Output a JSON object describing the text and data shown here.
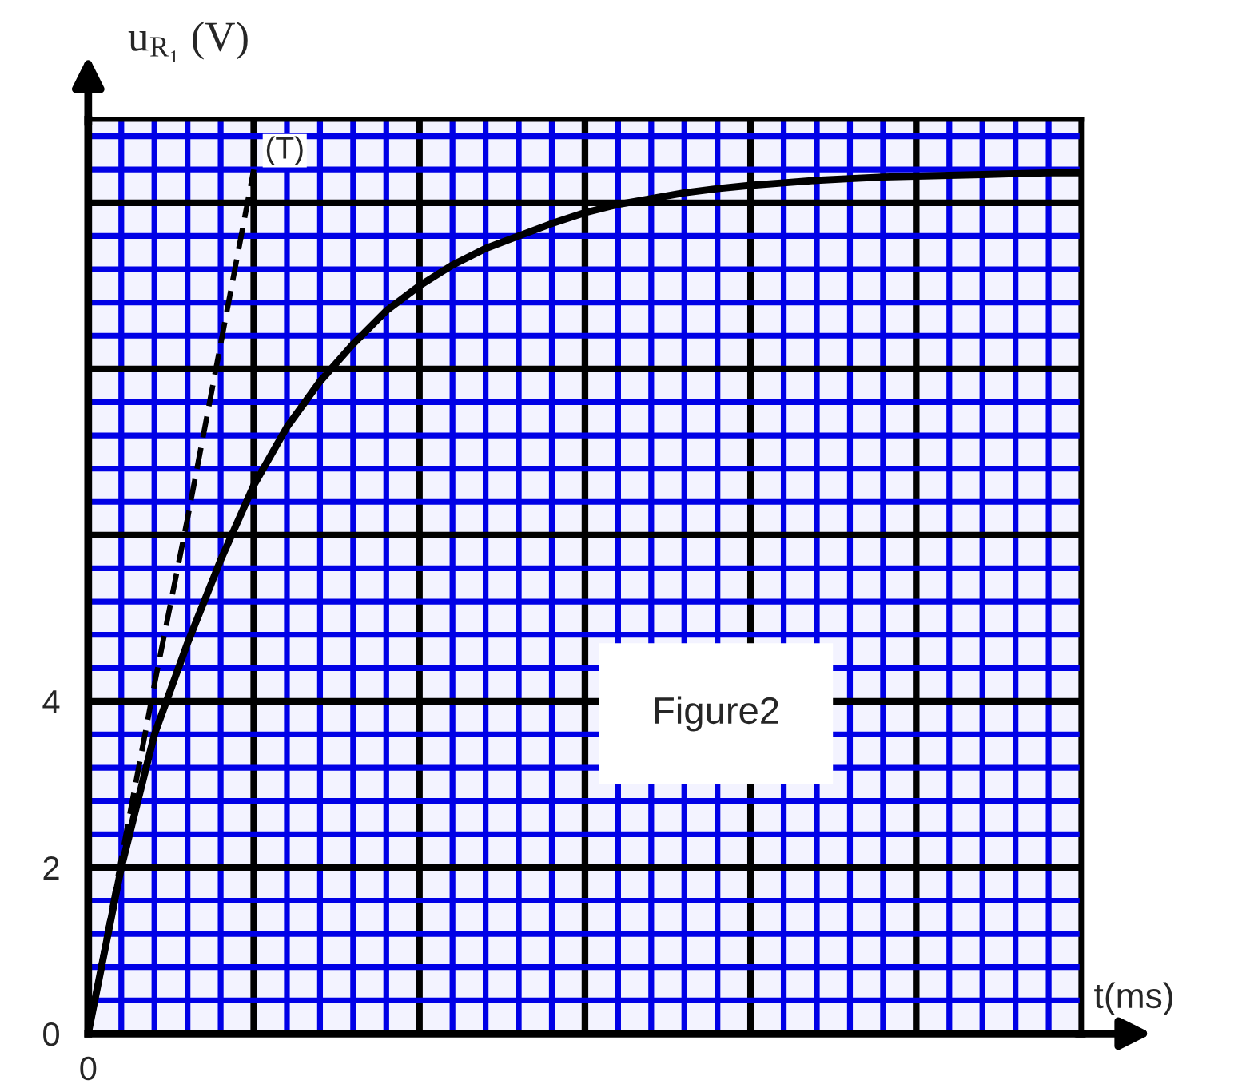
{
  "chart_data": {
    "type": "line",
    "ylabel": "u$_{R₁}$ (V)",
    "xlabel": "t(ms)",
    "annotations": [
      "Figure2"
    ],
    "categories": [
      "0",
      null,
      null,
      null,
      null,
      null,
      null,
      null,
      null,
      null,
      null,
      null,
      null,
      null,
      null,
      null,
      null,
      null,
      null,
      null,
      null,
      null,
      null,
      null,
      null,
      null,
      null,
      null,
      null,
      null,
      null
    ],
    "series": [
      {
        "color": "#000000",
        "line_style": "solid",
        "values": [
          0,
          2.0,
          3.6,
          4.7,
          5.7,
          6.6,
          7.3,
          7.85,
          8.3,
          8.7,
          9.0,
          9.25,
          9.45,
          9.6,
          9.75,
          9.88,
          9.98,
          10.05,
          10.12,
          10.17,
          10.21,
          10.24,
          10.27,
          10.29,
          10.31,
          10.32,
          10.33,
          10.34,
          10.35,
          10.36,
          10.36
        ]
      },
      {
        "name": "(T)",
        "color": "#000000",
        "line_style": "dashed",
        "values": [
          0,
          2.1,
          4.2,
          6.2,
          8.3,
          10.4,
          null,
          null,
          null,
          null,
          null,
          null,
          null,
          null,
          null,
          null,
          null,
          null,
          null,
          null,
          null,
          null,
          null,
          null,
          null,
          null,
          null,
          null,
          null,
          null,
          null
        ]
      }
    ],
    "ylim": [
      0,
      11
    ],
    "yticks": [
      0,
      2,
      4,
      {
        "value": 6,
        "label": null
      },
      {
        "value": 8,
        "label": null
      },
      {
        "value": 10,
        "label": null
      }
    ],
    "grid": true,
    "legend": false
  }
}
